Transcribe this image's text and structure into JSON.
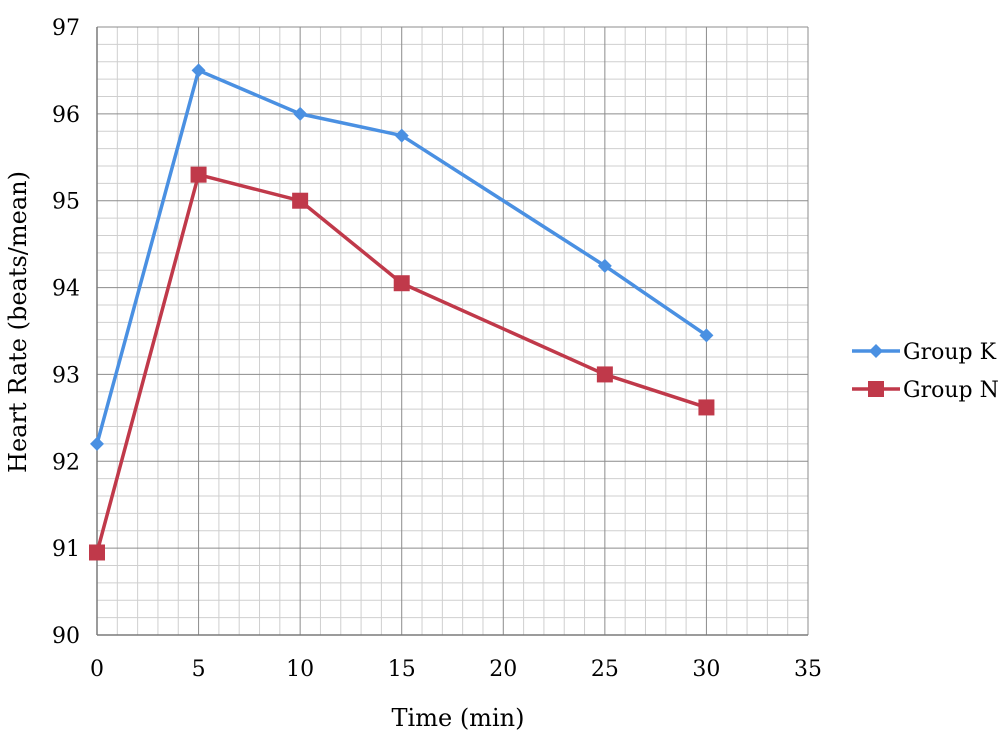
{
  "chart_data": {
    "type": "line",
    "title": "",
    "xlabel": "Time (min)",
    "ylabel": "Heart Rate (beats/mean)",
    "xlim": [
      0,
      35
    ],
    "ylim": [
      90,
      97
    ],
    "x_ticks": [
      "0",
      "5",
      "10",
      "15",
      "20",
      "25",
      "30",
      "35"
    ],
    "y_ticks": [
      "90",
      "91",
      "92",
      "93",
      "94",
      "95",
      "96",
      "97"
    ],
    "grid": true,
    "legend_position": "right",
    "series": [
      {
        "name": "Group K",
        "color": "#4a90e2",
        "marker": "diamond",
        "x": [
          0,
          5,
          10,
          15,
          25,
          30
        ],
        "y": [
          92.2,
          96.5,
          96.0,
          95.75,
          94.25,
          93.45
        ]
      },
      {
        "name": "Group N",
        "color": "#c0394a",
        "marker": "square",
        "x": [
          0,
          5,
          10,
          15,
          25,
          30
        ],
        "y": [
          90.95,
          95.3,
          95.0,
          94.05,
          93.0,
          92.62
        ]
      }
    ]
  }
}
